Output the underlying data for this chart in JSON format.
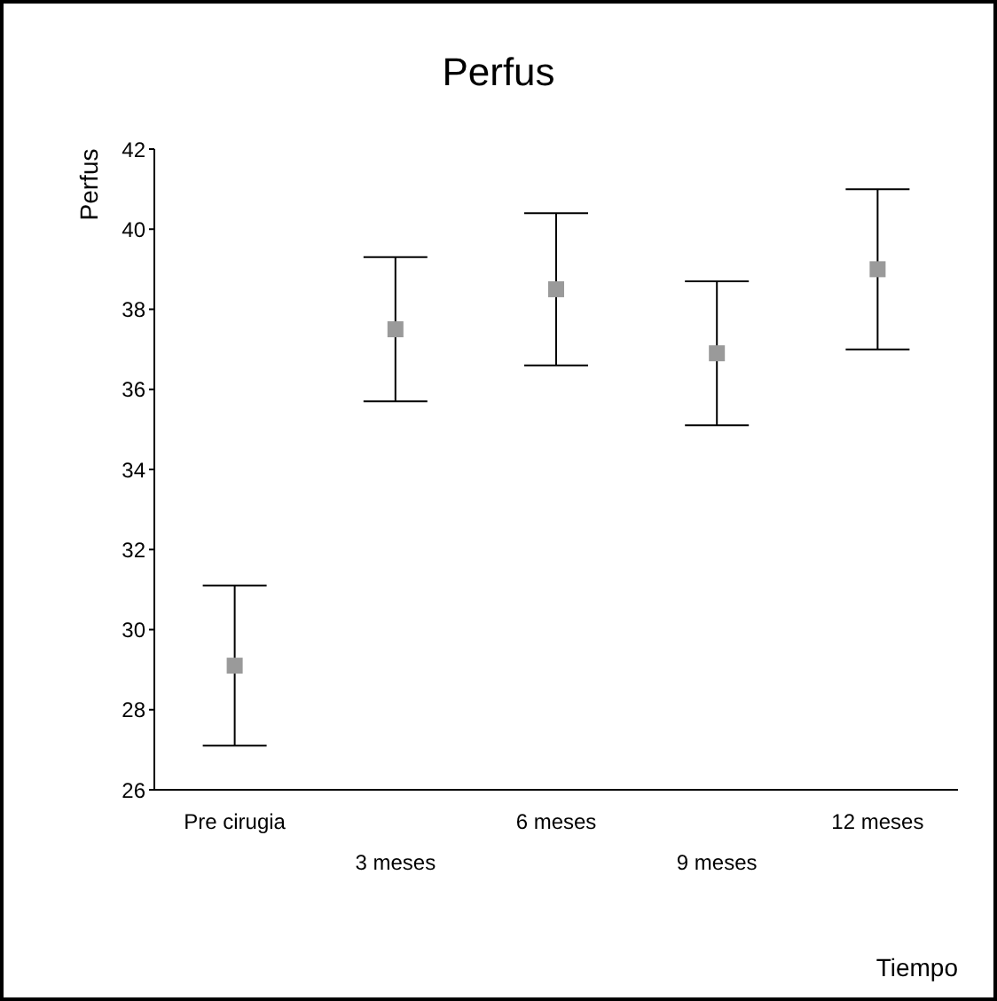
{
  "chart_data": {
    "type": "scatter",
    "title": "Perfus",
    "xlabel": "Tiempo",
    "ylabel": "Perfus",
    "categories": [
      "Pre cirugia",
      "3 meses",
      "6 meses",
      "9 meses",
      "12 meses"
    ],
    "values": [
      29.1,
      37.5,
      38.5,
      36.9,
      39.0
    ],
    "errors": [
      2.0,
      1.8,
      1.9,
      1.8,
      2.0
    ],
    "color": "#9a9a9a",
    "marker": "square",
    "ylim": [
      26,
      42
    ],
    "yticks": [
      26,
      28,
      30,
      32,
      34,
      36,
      38,
      40,
      42
    ],
    "grid": false
  }
}
